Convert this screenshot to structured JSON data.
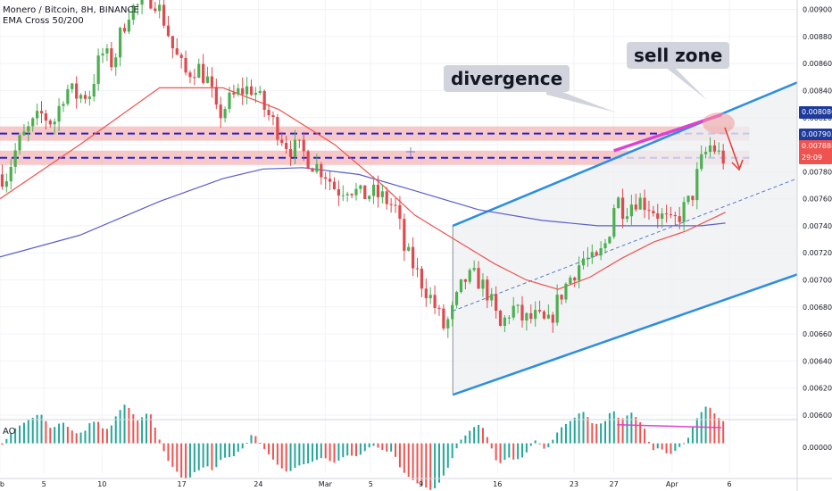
{
  "header": {
    "symbol_line": "Monero / Bitcoin, 8H, BINANCE",
    "indicator_line": "EMA Cross 50/200"
  },
  "annotations": {
    "divergence": "divergence",
    "sell_zone": "sell zone"
  },
  "oscillator": {
    "label": "AO",
    "zero_label": "0.000000"
  },
  "price_tags": [
    {
      "value": "0.00808082",
      "color": "#1e3a9a"
    },
    {
      "value": "0.00790303",
      "color": "#1e3a9a"
    },
    {
      "value": "0.00788868",
      "color": "#ef5350"
    },
    {
      "value": "29:09",
      "color": "#ef5350"
    }
  ],
  "colors": {
    "up": "#26a69a",
    "down": "#ef5350",
    "bull_candle": "#4caf50",
    "bear_candle": "#e0494d",
    "channel": "#2d8ee0",
    "ema_fast": "#ef5350",
    "ema_slow": "#5b5ec9",
    "zone_fill": "#f3b6b6",
    "zone_line": "#2a1fd0",
    "divergence_line": "#e040d0"
  },
  "chart_data": {
    "type": "candlestick",
    "ylim": [
      0.00598,
      0.00907
    ],
    "y_ticks": [
      "0.009000",
      "0.008800",
      "0.008600",
      "0.008400",
      "0.008200",
      "0.008000",
      "0.007800",
      "0.007600",
      "0.007400",
      "0.007200",
      "0.007000",
      "0.006800",
      "0.006600",
      "0.006400",
      "0.006200",
      "0.006000"
    ],
    "y_tick_values": [
      0.009,
      0.0088,
      0.0086,
      0.0084,
      0.0082,
      0.008,
      0.0078,
      0.0076,
      0.0074,
      0.0072,
      0.007,
      0.0068,
      0.0066,
      0.0064,
      0.0062,
      0.006
    ],
    "x_ticks": [
      "eb",
      "5",
      "10",
      "17",
      "24",
      "Mar",
      "5",
      "9",
      "16",
      "23",
      "27",
      "Apr",
      "6"
    ],
    "x_tick_pos": [
      0.0,
      0.055,
      0.128,
      0.228,
      0.324,
      0.408,
      0.465,
      0.528,
      0.624,
      0.72,
      0.77,
      0.843,
      0.915
    ],
    "resistance_zone": {
      "low": 0.007903,
      "high": 0.008082
    },
    "channel": {
      "upper": [
        [
          0.568,
          0.0074
        ],
        [
          1.0,
          0.00846
        ]
      ],
      "lower": [
        [
          0.568,
          0.00615
        ],
        [
          1.0,
          0.00704
        ]
      ],
      "mid": [
        [
          0.568,
          0.00677
        ],
        [
          1.0,
          0.00775
        ]
      ]
    },
    "divergence_price": [
      [
        0.77,
        0.007955
      ],
      [
        0.905,
        0.008222
      ]
    ],
    "ao_divergence": [
      [
        0.774,
        0.92
      ],
      [
        0.905,
        0.78
      ]
    ],
    "ao_range": [
      -1.3,
      1.0
    ],
    "ao_zero_label_value": 0.0,
    "keypoints": [
      [
        0.0,
        0.00778
      ],
      [
        0.01,
        0.00776
      ],
      [
        0.025,
        0.008
      ],
      [
        0.04,
        0.00812
      ],
      [
        0.055,
        0.00822
      ],
      [
        0.07,
        0.00816
      ],
      [
        0.085,
        0.00842
      ],
      [
        0.1,
        0.00836
      ],
      [
        0.115,
        0.00838
      ],
      [
        0.13,
        0.00868
      ],
      [
        0.145,
        0.0086
      ],
      [
        0.155,
        0.00884
      ],
      [
        0.165,
        0.009
      ],
      [
        0.18,
        0.00903
      ],
      [
        0.195,
        0.0091
      ],
      [
        0.21,
        0.0089
      ],
      [
        0.22,
        0.0087
      ],
      [
        0.235,
        0.00852
      ],
      [
        0.25,
        0.00858
      ],
      [
        0.265,
        0.00846
      ],
      [
        0.275,
        0.0082
      ],
      [
        0.29,
        0.00832
      ],
      [
        0.305,
        0.0084
      ],
      [
        0.32,
        0.00842
      ],
      [
        0.335,
        0.00826
      ],
      [
        0.35,
        0.00812
      ],
      [
        0.365,
        0.00798
      ],
      [
        0.38,
        0.00796
      ],
      [
        0.395,
        0.00786
      ],
      [
        0.41,
        0.0078
      ],
      [
        0.425,
        0.00766
      ],
      [
        0.44,
        0.0077
      ],
      [
        0.455,
        0.00762
      ],
      [
        0.47,
        0.00764
      ],
      [
        0.485,
        0.0076
      ],
      [
        0.5,
        0.00752
      ],
      [
        0.51,
        0.00722
      ],
      [
        0.52,
        0.00712
      ],
      [
        0.53,
        0.007
      ],
      [
        0.54,
        0.0069
      ],
      [
        0.55,
        0.00678
      ],
      [
        0.56,
        0.00664
      ],
      [
        0.57,
        0.00676
      ],
      [
        0.585,
        0.007
      ],
      [
        0.6,
        0.00702
      ],
      [
        0.615,
        0.0069
      ],
      [
        0.63,
        0.00664
      ],
      [
        0.645,
        0.0068
      ],
      [
        0.66,
        0.0067
      ],
      [
        0.675,
        0.00672
      ],
      [
        0.69,
        0.00666
      ],
      [
        0.705,
        0.00688
      ],
      [
        0.72,
        0.00704
      ],
      [
        0.735,
        0.00716
      ],
      [
        0.75,
        0.00712
      ],
      [
        0.765,
        0.0073
      ],
      [
        0.775,
        0.00762
      ],
      [
        0.785,
        0.00752
      ],
      [
        0.8,
        0.0076
      ],
      [
        0.815,
        0.00756
      ],
      [
        0.83,
        0.00748
      ],
      [
        0.845,
        0.0074
      ],
      [
        0.86,
        0.00752
      ],
      [
        0.87,
        0.0076
      ],
      [
        0.88,
        0.00784
      ],
      [
        0.89,
        0.00796
      ],
      [
        0.895,
        0.008
      ],
      [
        0.905,
        0.00792
      ],
      [
        0.91,
        0.0079
      ]
    ],
    "ema_fast": [
      [
        0.0,
        0.0076
      ],
      [
        0.1,
        0.008
      ],
      [
        0.2,
        0.00842
      ],
      [
        0.28,
        0.00842
      ],
      [
        0.35,
        0.00826
      ],
      [
        0.42,
        0.008
      ],
      [
        0.48,
        0.0077
      ],
      [
        0.52,
        0.00748
      ],
      [
        0.57,
        0.0073
      ],
      [
        0.62,
        0.00712
      ],
      [
        0.66,
        0.007
      ],
      [
        0.7,
        0.00693
      ],
      [
        0.74,
        0.00702
      ],
      [
        0.78,
        0.00716
      ],
      [
        0.82,
        0.00728
      ],
      [
        0.86,
        0.00736
      ],
      [
        0.91,
        0.0075
      ]
    ],
    "ema_slow": [
      [
        0.0,
        0.00717
      ],
      [
        0.1,
        0.00733
      ],
      [
        0.2,
        0.00758
      ],
      [
        0.28,
        0.00775
      ],
      [
        0.33,
        0.00782
      ],
      [
        0.38,
        0.00783
      ],
      [
        0.45,
        0.00778
      ],
      [
        0.52,
        0.00766
      ],
      [
        0.6,
        0.00752
      ],
      [
        0.68,
        0.00744
      ],
      [
        0.75,
        0.0074
      ],
      [
        0.82,
        0.0074
      ],
      [
        0.88,
        0.0074
      ],
      [
        0.91,
        0.00742
      ]
    ]
  }
}
